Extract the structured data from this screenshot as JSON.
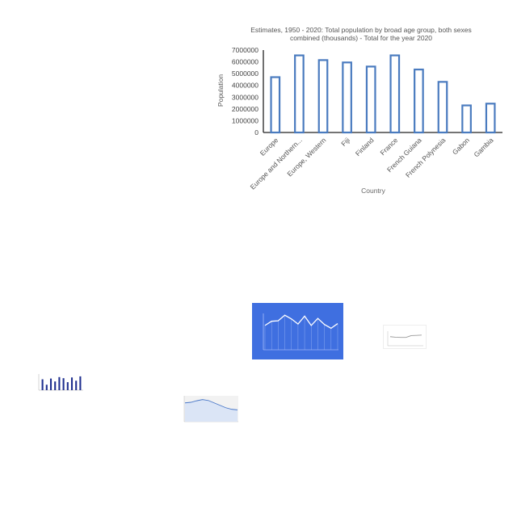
{
  "chart_data": [
    {
      "type": "bar",
      "title_line1": "Estimates, 1950 - 2020: Total population by broad age group, both sexes",
      "title_line2": "combined (thousands) - Total for the year 2020",
      "xlabel": "Country",
      "ylabel": "Population",
      "categories": [
        "Europe",
        "Europe and Northern...",
        "Europe, Western",
        "Fiji",
        "Finland",
        "France",
        "French Guiana",
        "French Polynesia",
        "Gabon",
        "Gambia"
      ],
      "values": [
        4700000,
        6550000,
        6150000,
        5950000,
        5600000,
        6550000,
        5350000,
        4300000,
        2300000,
        2450000
      ],
      "ylim": [
        0,
        7000000
      ],
      "yticks": [
        "0",
        "1000000",
        "2000000",
        "3000000",
        "4000000",
        "5000000",
        "6000000",
        "7000000"
      ],
      "bar_outline_color": "#4a7bbf",
      "grid": false
    },
    {
      "type": "line",
      "background": "#3f6fe0",
      "line_color": "#ffffff",
      "values": [
        5.2,
        6.1,
        6.2,
        7.4,
        6.6,
        5.5,
        7.2,
        5.2,
        6.7,
        5.4,
        4.6,
        5.6
      ]
    },
    {
      "type": "line",
      "line_color": "#9a9a9a",
      "values": [
        3.2,
        3.0,
        2.9,
        2.9,
        3.6,
        3.7,
        3.8
      ]
    },
    {
      "type": "bar",
      "bar_color": "#1f2f8f",
      "values": [
        3,
        1.5,
        3.2,
        2.4,
        3.6,
        3.3,
        2.2,
        3.5,
        2.6,
        3.8
      ]
    },
    {
      "type": "area",
      "line_color": "#4a78c8",
      "values": [
        6.2,
        6.4,
        6.9,
        7.3,
        7.0,
        6.2,
        5.4,
        4.6,
        4.1,
        3.9
      ]
    }
  ]
}
